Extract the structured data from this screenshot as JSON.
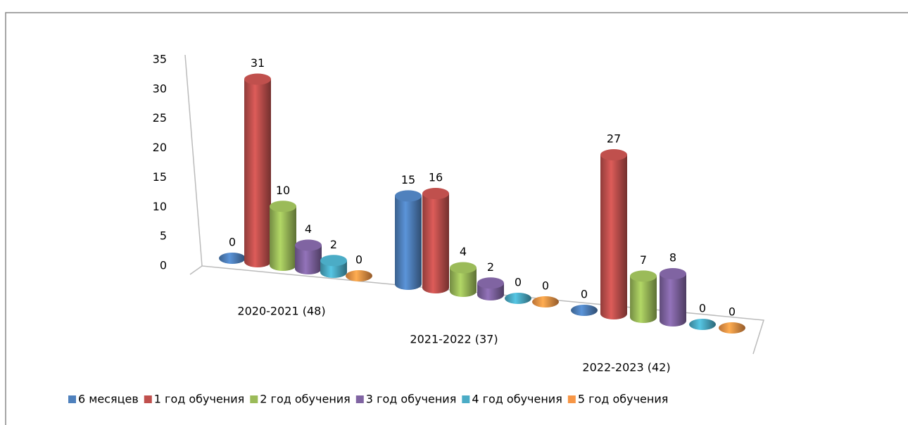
{
  "chart_data": {
    "type": "bar3d",
    "categories": [
      "2020-2021 (48)",
      "2021-2022 (37)",
      "2022-2023 (42)"
    ],
    "series": [
      {
        "name": "6 месяцев",
        "color": "#4f81bd",
        "values": [
          0,
          15,
          0
        ]
      },
      {
        "name": "1 год обучения",
        "color": "#c0504d",
        "values": [
          31,
          16,
          27
        ]
      },
      {
        "name": "2 год обучения",
        "color": "#9bbb59",
        "values": [
          10,
          4,
          7
        ]
      },
      {
        "name": "3 год обучения",
        "color": "#8064a2",
        "values": [
          4,
          2,
          8
        ]
      },
      {
        "name": "4 год обучения",
        "color": "#4bacc6",
        "values": [
          2,
          0,
          0
        ]
      },
      {
        "name": "5 год обучения",
        "color": "#f79646",
        "values": [
          0,
          0,
          0
        ]
      }
    ],
    "ylim": [
      0,
      35
    ],
    "yticks": [
      0,
      5,
      10,
      15,
      20,
      25,
      30,
      35
    ],
    "legend": "bottom"
  }
}
